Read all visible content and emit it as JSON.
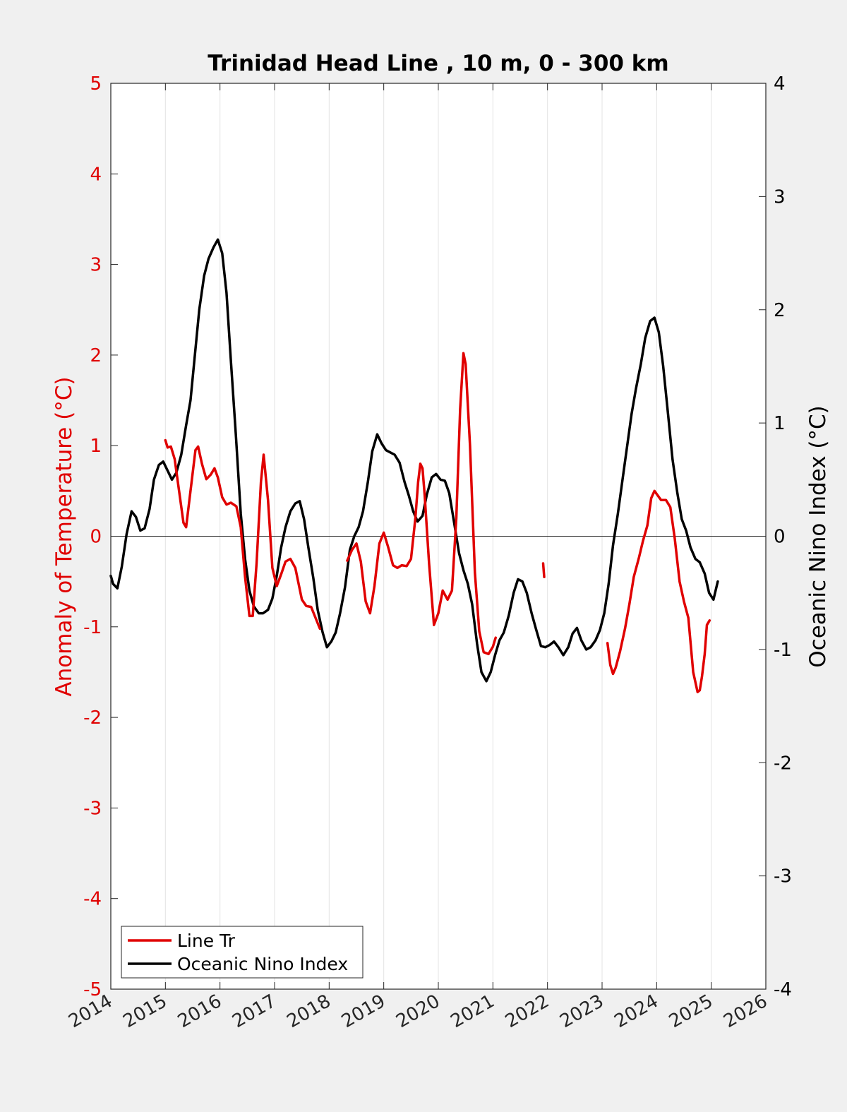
{
  "chart_data": {
    "type": "line",
    "title": "Trinidad Head Line , 10 m, 0 - 300 km",
    "xlim": [
      2014,
      2026
    ],
    "x_ticks": [
      "2014",
      "2015",
      "2016",
      "2017",
      "2018",
      "2019",
      "2020",
      "2021",
      "2022",
      "2023",
      "2024",
      "2025",
      "2026"
    ],
    "left_axis": {
      "label": "Anomaly of Temperature (°C)",
      "ylim": [
        -5,
        5
      ],
      "ticks": [
        "-5",
        "-4",
        "-3",
        "-2",
        "-1",
        "0",
        "1",
        "2",
        "3",
        "4",
        "5"
      ],
      "color": "#e00000"
    },
    "right_axis": {
      "label": "Oceanic Nino Index (°C)",
      "ylim": [
        -4,
        4
      ],
      "ticks": [
        "-4",
        "-3",
        "-2",
        "-1",
        "0",
        "1",
        "2",
        "3",
        "4"
      ],
      "color": "#000000"
    },
    "grid": "vertical",
    "zero_line": true,
    "legend_position": "bottom-left",
    "series": [
      {
        "name": "Line Tr",
        "axis": "left",
        "color": "#e00000",
        "segments": [
          [
            [
              2015.0,
              1.06
            ],
            [
              2015.04,
              0.98
            ],
            [
              2015.1,
              0.99
            ],
            [
              2015.17,
              0.85
            ],
            [
              2015.25,
              0.5
            ],
            [
              2015.33,
              0.15
            ],
            [
              2015.38,
              0.1
            ],
            [
              2015.46,
              0.5
            ],
            [
              2015.55,
              0.95
            ],
            [
              2015.6,
              0.99
            ],
            [
              2015.67,
              0.8
            ],
            [
              2015.75,
              0.63
            ],
            [
              2015.83,
              0.68
            ],
            [
              2015.9,
              0.75
            ],
            [
              2015.96,
              0.65
            ],
            [
              2016.04,
              0.43
            ],
            [
              2016.12,
              0.35
            ],
            [
              2016.2,
              0.37
            ],
            [
              2016.3,
              0.33
            ],
            [
              2016.38,
              0.1
            ],
            [
              2016.46,
              -0.45
            ],
            [
              2016.54,
              -0.88
            ],
            [
              2016.6,
              -0.88
            ],
            [
              2016.67,
              -0.3
            ],
            [
              2016.75,
              0.6
            ],
            [
              2016.8,
              0.9
            ],
            [
              2016.88,
              0.4
            ],
            [
              2016.96,
              -0.35
            ],
            [
              2017.04,
              -0.55
            ],
            [
              2017.12,
              -0.42
            ],
            [
              2017.2,
              -0.28
            ],
            [
              2017.29,
              -0.25
            ],
            [
              2017.38,
              -0.35
            ],
            [
              2017.5,
              -0.7
            ],
            [
              2017.58,
              -0.77
            ],
            [
              2017.67,
              -0.78
            ],
            [
              2017.75,
              -0.9
            ],
            [
              2017.83,
              -1.02
            ]
          ],
          [
            [
              2018.33,
              -0.27
            ],
            [
              2018.42,
              -0.15
            ],
            [
              2018.5,
              -0.08
            ],
            [
              2018.58,
              -0.28
            ],
            [
              2018.67,
              -0.72
            ],
            [
              2018.75,
              -0.85
            ],
            [
              2018.83,
              -0.55
            ],
            [
              2018.92,
              -0.08
            ],
            [
              2019.0,
              0.04
            ],
            [
              2019.08,
              -0.12
            ],
            [
              2019.17,
              -0.32
            ],
            [
              2019.25,
              -0.35
            ],
            [
              2019.33,
              -0.32
            ],
            [
              2019.42,
              -0.33
            ],
            [
              2019.5,
              -0.25
            ],
            [
              2019.58,
              0.2
            ],
            [
              2019.63,
              0.6
            ],
            [
              2019.67,
              0.8
            ],
            [
              2019.71,
              0.75
            ],
            [
              2019.75,
              0.45
            ],
            [
              2019.83,
              -0.3
            ],
            [
              2019.92,
              -0.98
            ],
            [
              2020.0,
              -0.85
            ],
            [
              2020.08,
              -0.6
            ],
            [
              2020.17,
              -0.7
            ],
            [
              2020.25,
              -0.6
            ],
            [
              2020.33,
              0.2
            ],
            [
              2020.4,
              1.4
            ],
            [
              2020.46,
              2.02
            ],
            [
              2020.5,
              1.9
            ],
            [
              2020.58,
              1.0
            ],
            [
              2020.67,
              -0.4
            ],
            [
              2020.75,
              -1.05
            ],
            [
              2020.83,
              -1.28
            ],
            [
              2020.92,
              -1.3
            ],
            [
              2021.0,
              -1.22
            ],
            [
              2021.05,
              -1.12
            ]
          ],
          [
            [
              2021.92,
              -0.3
            ],
            [
              2021.94,
              -0.45
            ]
          ],
          [
            [
              2023.1,
              -1.18
            ],
            [
              2023.15,
              -1.42
            ],
            [
              2023.2,
              -1.52
            ],
            [
              2023.25,
              -1.45
            ],
            [
              2023.33,
              -1.27
            ],
            [
              2023.42,
              -1.02
            ],
            [
              2023.5,
              -0.75
            ],
            [
              2023.58,
              -0.45
            ],
            [
              2023.67,
              -0.25
            ],
            [
              2023.75,
              -0.05
            ],
            [
              2023.83,
              0.12
            ],
            [
              2023.9,
              0.42
            ],
            [
              2023.96,
              0.5
            ],
            [
              2024.02,
              0.45
            ],
            [
              2024.08,
              0.4
            ],
            [
              2024.17,
              0.4
            ],
            [
              2024.25,
              0.32
            ],
            [
              2024.33,
              -0.02
            ],
            [
              2024.42,
              -0.5
            ],
            [
              2024.5,
              -0.72
            ],
            [
              2024.58,
              -0.9
            ],
            [
              2024.67,
              -1.5
            ],
            [
              2024.75,
              -1.72
            ],
            [
              2024.79,
              -1.7
            ],
            [
              2024.83,
              -1.55
            ],
            [
              2024.88,
              -1.3
            ],
            [
              2024.92,
              -0.98
            ],
            [
              2024.97,
              -0.93
            ]
          ]
        ]
      },
      {
        "name": "Oceanic Nino Index",
        "axis": "right",
        "color": "#000000",
        "segments": [
          [
            [
              2014.0,
              -0.35
            ],
            [
              2014.04,
              -0.42
            ],
            [
              2014.12,
              -0.46
            ],
            [
              2014.2,
              -0.27
            ],
            [
              2014.29,
              0.02
            ],
            [
              2014.38,
              0.22
            ],
            [
              2014.46,
              0.17
            ],
            [
              2014.54,
              0.05
            ],
            [
              2014.62,
              0.07
            ],
            [
              2014.71,
              0.24
            ],
            [
              2014.79,
              0.5
            ],
            [
              2014.88,
              0.63
            ],
            [
              2014.96,
              0.66
            ],
            [
              2015.04,
              0.58
            ],
            [
              2015.12,
              0.5
            ],
            [
              2015.2,
              0.56
            ],
            [
              2015.29,
              0.72
            ],
            [
              2015.38,
              0.98
            ],
            [
              2015.46,
              1.2
            ],
            [
              2015.54,
              1.6
            ],
            [
              2015.62,
              2.0
            ],
            [
              2015.71,
              2.3
            ],
            [
              2015.79,
              2.45
            ],
            [
              2015.88,
              2.55
            ],
            [
              2015.96,
              2.62
            ],
            [
              2016.04,
              2.5
            ],
            [
              2016.12,
              2.15
            ],
            [
              2016.2,
              1.55
            ],
            [
              2016.29,
              0.9
            ],
            [
              2016.38,
              0.2
            ],
            [
              2016.46,
              -0.2
            ],
            [
              2016.54,
              -0.48
            ],
            [
              2016.62,
              -0.62
            ],
            [
              2016.71,
              -0.68
            ],
            [
              2016.79,
              -0.68
            ],
            [
              2016.88,
              -0.65
            ],
            [
              2016.96,
              -0.55
            ],
            [
              2017.04,
              -0.35
            ],
            [
              2017.12,
              -0.1
            ],
            [
              2017.2,
              0.08
            ],
            [
              2017.29,
              0.22
            ],
            [
              2017.38,
              0.29
            ],
            [
              2017.46,
              0.31
            ],
            [
              2017.54,
              0.15
            ],
            [
              2017.62,
              -0.1
            ],
            [
              2017.71,
              -0.37
            ],
            [
              2017.79,
              -0.65
            ],
            [
              2017.88,
              -0.85
            ],
            [
              2017.96,
              -0.98
            ],
            [
              2018.04,
              -0.93
            ],
            [
              2018.12,
              -0.85
            ],
            [
              2018.2,
              -0.68
            ],
            [
              2018.29,
              -0.45
            ],
            [
              2018.38,
              -0.12
            ],
            [
              2018.46,
              0.0
            ],
            [
              2018.54,
              0.08
            ],
            [
              2018.62,
              0.22
            ],
            [
              2018.71,
              0.48
            ],
            [
              2018.79,
              0.75
            ],
            [
              2018.88,
              0.9
            ],
            [
              2018.96,
              0.82
            ],
            [
              2019.04,
              0.76
            ],
            [
              2019.12,
              0.74
            ],
            [
              2019.2,
              0.72
            ],
            [
              2019.29,
              0.65
            ],
            [
              2019.38,
              0.48
            ],
            [
              2019.46,
              0.36
            ],
            [
              2019.54,
              0.22
            ],
            [
              2019.62,
              0.13
            ],
            [
              2019.71,
              0.18
            ],
            [
              2019.79,
              0.37
            ],
            [
              2019.88,
              0.52
            ],
            [
              2019.96,
              0.55
            ],
            [
              2020.04,
              0.5
            ],
            [
              2020.12,
              0.49
            ],
            [
              2020.2,
              0.38
            ],
            [
              2020.29,
              0.12
            ],
            [
              2020.38,
              -0.15
            ],
            [
              2020.46,
              -0.3
            ],
            [
              2020.54,
              -0.42
            ],
            [
              2020.62,
              -0.6
            ],
            [
              2020.71,
              -0.95
            ],
            [
              2020.79,
              -1.2
            ],
            [
              2020.88,
              -1.28
            ],
            [
              2020.96,
              -1.2
            ],
            [
              2021.04,
              -1.05
            ],
            [
              2021.12,
              -0.92
            ],
            [
              2021.2,
              -0.85
            ],
            [
              2021.29,
              -0.7
            ],
            [
              2021.38,
              -0.5
            ],
            [
              2021.46,
              -0.38
            ],
            [
              2021.54,
              -0.4
            ],
            [
              2021.62,
              -0.5
            ],
            [
              2021.71,
              -0.68
            ],
            [
              2021.79,
              -0.82
            ],
            [
              2021.88,
              -0.97
            ],
            [
              2021.96,
              -0.98
            ],
            [
              2022.04,
              -0.96
            ],
            [
              2022.12,
              -0.93
            ],
            [
              2022.2,
              -0.98
            ],
            [
              2022.29,
              -1.05
            ],
            [
              2022.38,
              -0.98
            ],
            [
              2022.46,
              -0.86
            ],
            [
              2022.54,
              -0.81
            ],
            [
              2022.62,
              -0.92
            ],
            [
              2022.71,
              -1.0
            ],
            [
              2022.79,
              -0.98
            ],
            [
              2022.88,
              -0.92
            ],
            [
              2022.96,
              -0.83
            ],
            [
              2023.04,
              -0.68
            ],
            [
              2023.12,
              -0.42
            ],
            [
              2023.2,
              -0.08
            ],
            [
              2023.29,
              0.2
            ],
            [
              2023.38,
              0.52
            ],
            [
              2023.46,
              0.8
            ],
            [
              2023.54,
              1.08
            ],
            [
              2023.62,
              1.3
            ],
            [
              2023.71,
              1.52
            ],
            [
              2023.79,
              1.75
            ],
            [
              2023.88,
              1.9
            ],
            [
              2023.96,
              1.93
            ],
            [
              2024.04,
              1.8
            ],
            [
              2024.12,
              1.5
            ],
            [
              2024.2,
              1.12
            ],
            [
              2024.29,
              0.68
            ],
            [
              2024.38,
              0.38
            ],
            [
              2024.46,
              0.15
            ],
            [
              2024.54,
              0.05
            ],
            [
              2024.62,
              -0.1
            ],
            [
              2024.71,
              -0.2
            ],
            [
              2024.79,
              -0.23
            ],
            [
              2024.88,
              -0.33
            ],
            [
              2024.96,
              -0.5
            ],
            [
              2025.04,
              -0.56
            ],
            [
              2025.12,
              -0.4
            ]
          ]
        ]
      }
    ]
  }
}
